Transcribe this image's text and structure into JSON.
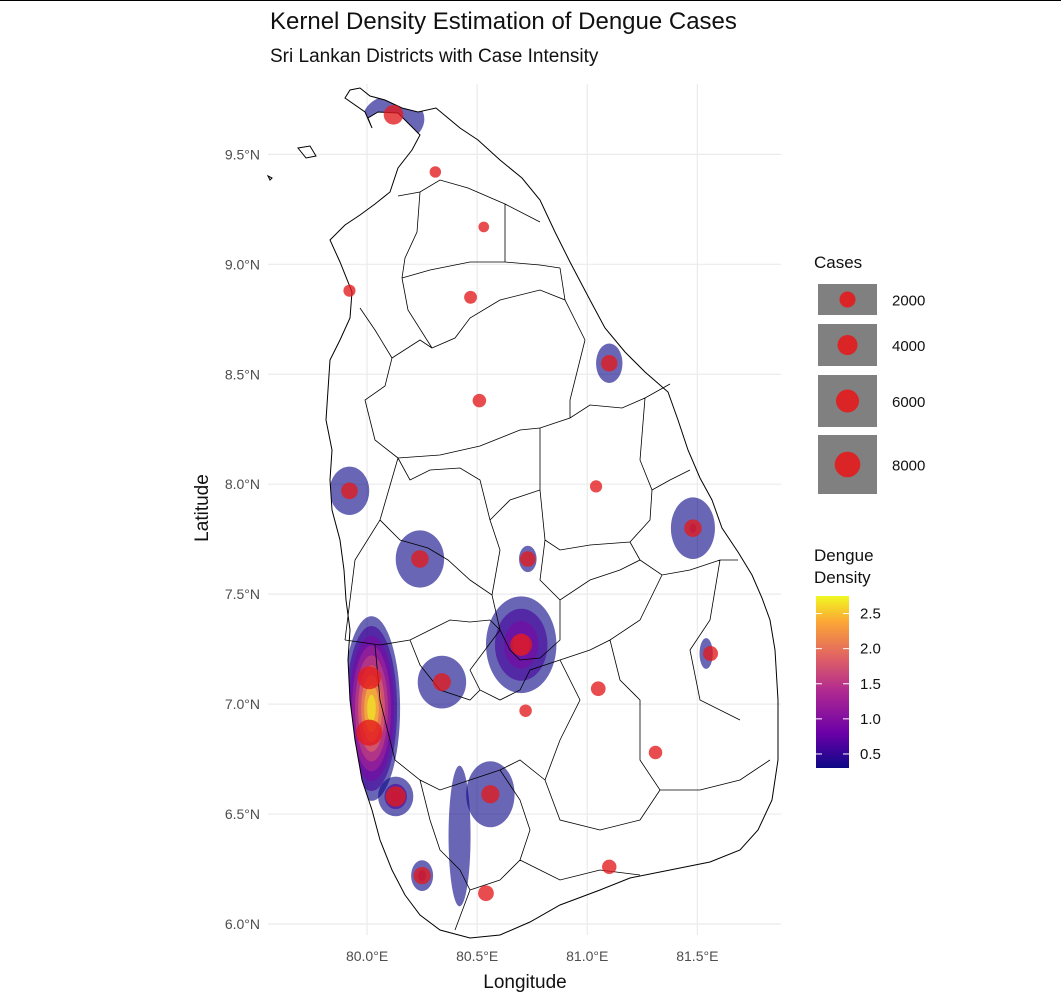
{
  "title": "Kernel Density Estimation of Dengue Cases",
  "subtitle": "Sri Lankan Districts with Case Intensity",
  "chart_data": {
    "type": "map",
    "xlabel": "Longitude",
    "ylabel": "Latitude",
    "xlim": [
      79.55,
      81.88
    ],
    "ylim": [
      5.95,
      9.82
    ],
    "x_ticks": [
      80.0,
      80.5,
      81.0,
      81.5
    ],
    "x_tick_labels": [
      "80.0°E",
      "80.5°E",
      "81.0°E",
      "81.5°E"
    ],
    "y_ticks": [
      6.0,
      6.5,
      7.0,
      7.5,
      8.0,
      8.5,
      9.0,
      9.5
    ],
    "y_tick_labels": [
      "6.0°N",
      "6.5°N",
      "7.0°N",
      "7.5°N",
      "8.0°N",
      "8.5°N",
      "9.0°N",
      "9.5°N"
    ],
    "grid": true,
    "size_legend": {
      "title": "Cases",
      "entries": [
        {
          "label": "2000",
          "value": 2000
        },
        {
          "label": "4000",
          "value": 4000
        },
        {
          "label": "6000",
          "value": 6000
        },
        {
          "label": "8000",
          "value": 8000
        }
      ]
    },
    "color_legend": {
      "title_lines": [
        "Dengue",
        "Density"
      ],
      "ticks": [
        0.5,
        1.0,
        1.5,
        2.0,
        2.5
      ],
      "tick_labels": [
        "0.5",
        "1.0",
        "1.5",
        "2.0",
        "2.5"
      ],
      "range": [
        0.3,
        2.75
      ],
      "palette": [
        "#0d0887",
        "#6a00a8",
        "#b12a90",
        "#e16462",
        "#fca636",
        "#f0f921"
      ]
    },
    "point_color": "#e31a1c",
    "districts": [
      {
        "lon": 80.01,
        "lat": 6.87,
        "cases": 8500
      },
      {
        "lon": 80.01,
        "lat": 7.12,
        "cases": 6000
      },
      {
        "lon": 80.13,
        "lat": 6.58,
        "cases": 4200
      },
      {
        "lon": 80.7,
        "lat": 7.27,
        "cases": 5200
      },
      {
        "lon": 80.12,
        "lat": 9.68,
        "cases": 3800
      },
      {
        "lon": 80.34,
        "lat": 7.1,
        "cases": 2900
      },
      {
        "lon": 80.56,
        "lat": 6.59,
        "cases": 3000
      },
      {
        "lon": 80.24,
        "lat": 7.66,
        "cases": 2700
      },
      {
        "lon": 81.48,
        "lat": 7.8,
        "cases": 2700
      },
      {
        "lon": 80.25,
        "lat": 6.22,
        "cases": 2600
      },
      {
        "lon": 79.92,
        "lat": 7.97,
        "cases": 2300
      },
      {
        "lon": 81.1,
        "lat": 8.55,
        "cases": 2200
      },
      {
        "lon": 80.54,
        "lat": 6.14,
        "cases": 1900
      },
      {
        "lon": 80.73,
        "lat": 7.66,
        "cases": 1800
      },
      {
        "lon": 81.56,
        "lat": 7.23,
        "cases": 1600
      },
      {
        "lon": 81.05,
        "lat": 7.07,
        "cases": 1500
      },
      {
        "lon": 81.1,
        "lat": 6.26,
        "cases": 1400
      },
      {
        "lon": 81.31,
        "lat": 6.78,
        "cases": 1100
      },
      {
        "lon": 80.51,
        "lat": 8.38,
        "cases": 1100
      },
      {
        "lon": 80.47,
        "lat": 8.85,
        "cases": 900
      },
      {
        "lon": 80.72,
        "lat": 6.97,
        "cases": 800
      },
      {
        "lon": 81.04,
        "lat": 7.99,
        "cases": 750
      },
      {
        "lon": 79.92,
        "lat": 8.88,
        "cases": 700
      },
      {
        "lon": 80.31,
        "lat": 9.42,
        "cases": 550
      },
      {
        "lon": 80.53,
        "lat": 9.17,
        "cases": 400
      }
    ],
    "density_blobs": [
      {
        "lon": 80.02,
        "lat": 6.98,
        "rx": 0.13,
        "ry": 0.42,
        "peak": 2.7
      },
      {
        "lon": 80.13,
        "lat": 6.58,
        "rx": 0.08,
        "ry": 0.09,
        "peak": 1.0
      },
      {
        "lon": 80.7,
        "lat": 7.27,
        "rx": 0.16,
        "ry": 0.22,
        "peak": 1.3
      },
      {
        "lon": 80.34,
        "lat": 7.1,
        "rx": 0.11,
        "ry": 0.12,
        "peak": 0.5
      },
      {
        "lon": 80.56,
        "lat": 6.59,
        "rx": 0.11,
        "ry": 0.15,
        "peak": 0.5
      },
      {
        "lon": 80.24,
        "lat": 7.66,
        "rx": 0.11,
        "ry": 0.13,
        "peak": 0.5
      },
      {
        "lon": 81.48,
        "lat": 7.8,
        "rx": 0.1,
        "ry": 0.14,
        "peak": 0.6
      },
      {
        "lon": 80.12,
        "lat": 9.66,
        "rx": 0.14,
        "ry": 0.11,
        "peak": 0.6
      },
      {
        "lon": 80.25,
        "lat": 6.22,
        "rx": 0.05,
        "ry": 0.07,
        "peak": 0.7
      },
      {
        "lon": 79.92,
        "lat": 7.97,
        "rx": 0.09,
        "ry": 0.11,
        "peak": 0.5
      },
      {
        "lon": 81.1,
        "lat": 8.55,
        "rx": 0.06,
        "ry": 0.09,
        "peak": 0.5
      },
      {
        "lon": 80.73,
        "lat": 7.66,
        "rx": 0.04,
        "ry": 0.06,
        "peak": 0.5
      },
      {
        "lon": 81.54,
        "lat": 7.23,
        "rx": 0.03,
        "ry": 0.07,
        "peak": 0.45
      },
      {
        "lon": 80.42,
        "lat": 6.4,
        "rx": 0.05,
        "ry": 0.32,
        "peak": 0.45
      }
    ]
  }
}
